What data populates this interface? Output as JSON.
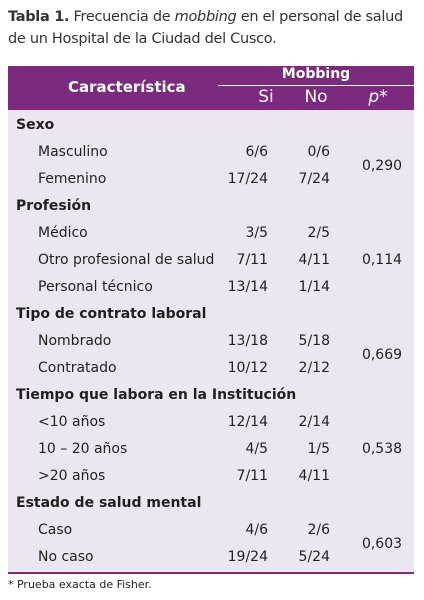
{
  "caption": {
    "label": "Tabla 1.",
    "text_before": "Frecuencia de",
    "text_italic": "mobbing",
    "text_after": "en el personal de salud de un Hospital de la Ciudad del Cusco."
  },
  "table": {
    "header": {
      "characteristic": "Característica",
      "group": "Mobbing",
      "yes": "Si",
      "no": "No",
      "p": "p*"
    },
    "groups": [
      {
        "title": "Sexo",
        "p": "0,290",
        "rows": [
          [
            "Masculino",
            "6/6",
            "0/6"
          ],
          [
            "Femenino",
            "17/24",
            "7/24"
          ]
        ]
      },
      {
        "title": "Profesión",
        "p": "0,114",
        "rows": [
          [
            "Médico",
            "3/5",
            "2/5"
          ],
          [
            "Otro profesional de salud",
            "7/11",
            "4/11"
          ],
          [
            "Personal técnico",
            "13/14",
            "1/14"
          ]
        ]
      },
      {
        "title": "Tipo de contrato laboral",
        "p": "0,669",
        "rows": [
          [
            "Nombrado",
            "13/18",
            "5/18"
          ],
          [
            "Contratado",
            "10/12",
            "2/12"
          ]
        ]
      },
      {
        "title": "Tiempo que labora en la Institución",
        "p": "0,538",
        "rows": [
          [
            "<10 años",
            "12/14",
            "2/14"
          ],
          [
            "10 – 20 años",
            "4/5",
            "1/5"
          ],
          [
            ">20 años",
            "7/11",
            "4/11"
          ]
        ]
      },
      {
        "title": "Estado de salud mental",
        "p": "0,603",
        "rows": [
          [
            "Caso",
            "4/6",
            "2/6"
          ],
          [
            "No caso",
            "19/24",
            "5/24"
          ]
        ]
      }
    ]
  },
  "footnote": "* Prueba exacta de Fisher."
}
